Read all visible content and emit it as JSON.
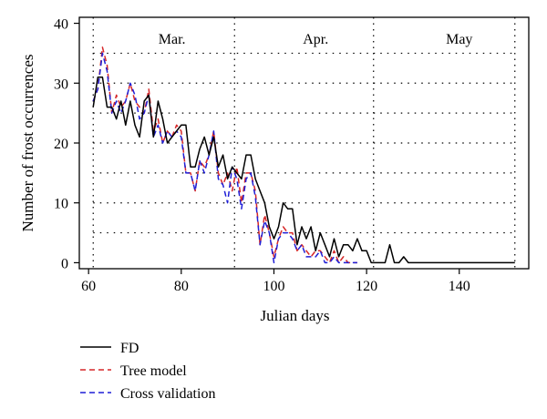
{
  "chart_data": {
    "type": "line",
    "title": "",
    "xlabel": "Julian days",
    "ylabel": "Number of frost occurrences",
    "xlim": [
      58,
      155
    ],
    "ylim": [
      -1,
      41
    ],
    "xticks": [
      60,
      80,
      100,
      120,
      140
    ],
    "yticks": [
      0,
      10,
      20,
      30,
      40
    ],
    "grid": true,
    "grid_style": "dotted",
    "vertical_grid_x": [
      61,
      91.5,
      121.5,
      152
    ],
    "horizontal_grid_y": [
      5,
      10,
      15,
      20,
      25,
      30,
      35
    ],
    "month_labels": [
      {
        "text": "Mar.",
        "x": 78,
        "y": 37.5
      },
      {
        "text": "Apr.",
        "x": 109,
        "y": 37.5
      },
      {
        "text": "May",
        "x": 140,
        "y": 37.5
      }
    ],
    "legend_position": "bottom-left",
    "series": [
      {
        "name": "FD",
        "color": "#000000",
        "dash": "solid",
        "points": [
          [
            61,
            26
          ],
          [
            62,
            31
          ],
          [
            63,
            31
          ],
          [
            64,
            26
          ],
          [
            65,
            26
          ],
          [
            66,
            24
          ],
          [
            67,
            27
          ],
          [
            68,
            23
          ],
          [
            69,
            27
          ],
          [
            70,
            23
          ],
          [
            71,
            21
          ],
          [
            72,
            27
          ],
          [
            73,
            28
          ],
          [
            74,
            21
          ],
          [
            75,
            27
          ],
          [
            76,
            24
          ],
          [
            77,
            20
          ],
          [
            78,
            21
          ],
          [
            79,
            22
          ],
          [
            80,
            23
          ],
          [
            81,
            23
          ],
          [
            82,
            16
          ],
          [
            83,
            16
          ],
          [
            84,
            19
          ],
          [
            85,
            21
          ],
          [
            86,
            18
          ],
          [
            87,
            21
          ],
          [
            88,
            16
          ],
          [
            89,
            18
          ],
          [
            90,
            14
          ],
          [
            91,
            16
          ],
          [
            92,
            15
          ],
          [
            93,
            14
          ],
          [
            94,
            18
          ],
          [
            95,
            18
          ],
          [
            96,
            14
          ],
          [
            97,
            12
          ],
          [
            98,
            10
          ],
          [
            99,
            6
          ],
          [
            100,
            4
          ],
          [
            101,
            6
          ],
          [
            102,
            10
          ],
          [
            103,
            9
          ],
          [
            104,
            9
          ],
          [
            105,
            3
          ],
          [
            106,
            6
          ],
          [
            107,
            4
          ],
          [
            108,
            6
          ],
          [
            109,
            2
          ],
          [
            110,
            5
          ],
          [
            111,
            3
          ],
          [
            112,
            1
          ],
          [
            113,
            4
          ],
          [
            114,
            1
          ],
          [
            115,
            3
          ],
          [
            116,
            3
          ],
          [
            117,
            2
          ],
          [
            118,
            4
          ],
          [
            119,
            2
          ],
          [
            120,
            2
          ],
          [
            121,
            0
          ],
          [
            122,
            0
          ],
          [
            123,
            0
          ],
          [
            124,
            0
          ],
          [
            125,
            3
          ],
          [
            126,
            0
          ],
          [
            127,
            0
          ],
          [
            128,
            1
          ],
          [
            129,
            0
          ],
          [
            130,
            0
          ],
          [
            132,
            0
          ],
          [
            134,
            0
          ],
          [
            136,
            0
          ],
          [
            138,
            0
          ],
          [
            140,
            0
          ],
          [
            142,
            0
          ],
          [
            144,
            0
          ],
          [
            146,
            0
          ],
          [
            148,
            0
          ],
          [
            150,
            0
          ],
          [
            152,
            0
          ]
        ]
      },
      {
        "name": "Tree model",
        "color": "#d62728",
        "dash": "dashed",
        "points": [
          [
            61,
            27
          ],
          [
            62,
            29
          ],
          [
            63,
            36
          ],
          [
            64,
            33
          ],
          [
            65,
            25
          ],
          [
            66,
            28
          ],
          [
            67,
            26
          ],
          [
            68,
            27
          ],
          [
            69,
            30
          ],
          [
            70,
            27
          ],
          [
            71,
            26
          ],
          [
            72,
            25
          ],
          [
            73,
            29
          ],
          [
            74,
            22
          ],
          [
            75,
            24
          ],
          [
            76,
            20
          ],
          [
            77,
            22
          ],
          [
            78,
            21
          ],
          [
            79,
            23
          ],
          [
            80,
            22
          ],
          [
            81,
            15
          ],
          [
            82,
            15
          ],
          [
            83,
            12
          ],
          [
            84,
            17
          ],
          [
            85,
            16
          ],
          [
            86,
            18
          ],
          [
            87,
            22
          ],
          [
            88,
            15
          ],
          [
            89,
            13
          ],
          [
            90,
            15
          ],
          [
            91,
            12
          ],
          [
            92,
            16
          ],
          [
            93,
            10
          ],
          [
            94,
            15
          ],
          [
            95,
            15
          ],
          [
            96,
            12
          ],
          [
            97,
            3
          ],
          [
            98,
            8
          ],
          [
            99,
            5
          ],
          [
            100,
            1
          ],
          [
            101,
            4
          ],
          [
            102,
            6
          ],
          [
            103,
            5
          ],
          [
            104,
            5
          ],
          [
            105,
            2
          ],
          [
            106,
            3
          ],
          [
            107,
            2
          ],
          [
            108,
            1
          ],
          [
            109,
            2
          ],
          [
            110,
            2
          ],
          [
            111,
            1
          ],
          [
            112,
            0
          ],
          [
            113,
            2
          ],
          [
            114,
            0
          ],
          [
            115,
            1
          ],
          [
            116,
            0
          ],
          [
            117,
            0
          ],
          [
            118,
            0
          ]
        ]
      },
      {
        "name": "Cross validation",
        "color": "#1f1fd6",
        "dash": "dashed",
        "points": [
          [
            61,
            27
          ],
          [
            62,
            29
          ],
          [
            63,
            35
          ],
          [
            64,
            32
          ],
          [
            65,
            25
          ],
          [
            66,
            27
          ],
          [
            67,
            25
          ],
          [
            68,
            27
          ],
          [
            69,
            30
          ],
          [
            70,
            28
          ],
          [
            71,
            24
          ],
          [
            72,
            25
          ],
          [
            73,
            28
          ],
          [
            74,
            21
          ],
          [
            75,
            23
          ],
          [
            76,
            20
          ],
          [
            77,
            22
          ],
          [
            78,
            21
          ],
          [
            79,
            22
          ],
          [
            80,
            21
          ],
          [
            81,
            15
          ],
          [
            82,
            15
          ],
          [
            83,
            12
          ],
          [
            84,
            17
          ],
          [
            85,
            15
          ],
          [
            86,
            18
          ],
          [
            87,
            22
          ],
          [
            88,
            14
          ],
          [
            89,
            13
          ],
          [
            90,
            10
          ],
          [
            91,
            16
          ],
          [
            92,
            14
          ],
          [
            93,
            9
          ],
          [
            94,
            14
          ],
          [
            95,
            15
          ],
          [
            96,
            11
          ],
          [
            97,
            3
          ],
          [
            98,
            7
          ],
          [
            99,
            5
          ],
          [
            100,
            0
          ],
          [
            101,
            4
          ],
          [
            102,
            5
          ],
          [
            103,
            5
          ],
          [
            104,
            4
          ],
          [
            105,
            2
          ],
          [
            106,
            3
          ],
          [
            107,
            1
          ],
          [
            108,
            1
          ],
          [
            109,
            1
          ],
          [
            110,
            2
          ],
          [
            111,
            0
          ],
          [
            112,
            0
          ],
          [
            113,
            1
          ],
          [
            114,
            0
          ],
          [
            115,
            0
          ],
          [
            116,
            0
          ],
          [
            117,
            0
          ],
          [
            118,
            0
          ]
        ]
      }
    ]
  }
}
